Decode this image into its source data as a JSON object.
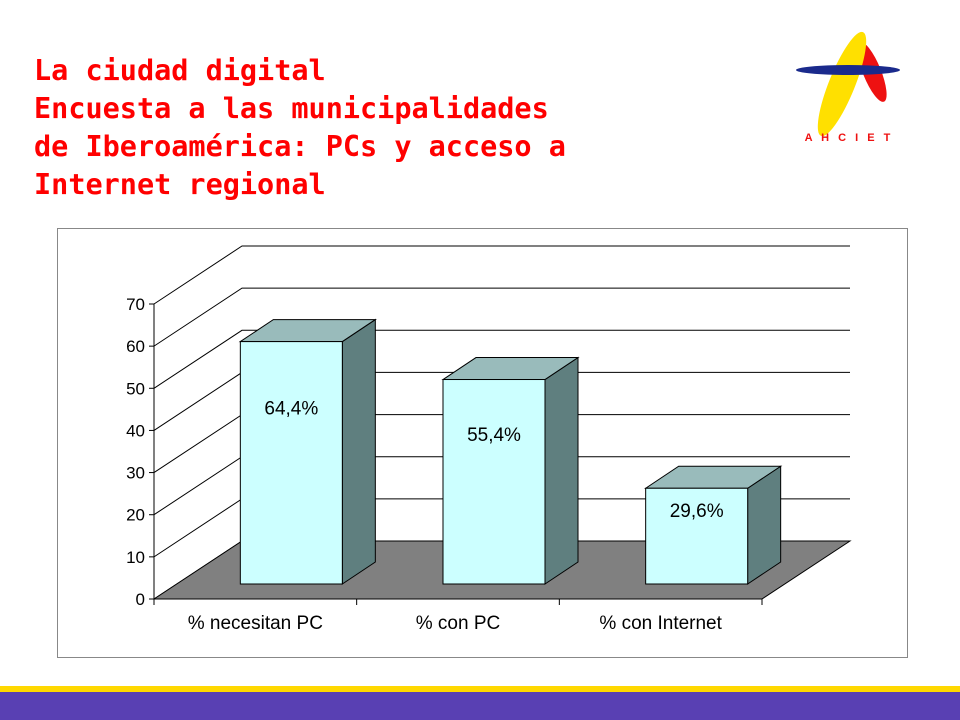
{
  "header": {
    "title_lines": [
      "La ciudad digital",
      "Encuesta a las municipalidades",
      "de Iberoamérica: PCs y acceso a",
      "Internet regional"
    ],
    "title_color": "#ff0000"
  },
  "logo": {
    "text": "A H C I E T",
    "icon": "ahciet-logo",
    "colors": {
      "yellow": "#ffe000",
      "red": "#ee1111",
      "blue": "#1a2a8c"
    }
  },
  "chart_data": {
    "type": "bar",
    "style": "3d-column",
    "categories": [
      "% necesitan PC",
      "% con PC",
      "% con Internet"
    ],
    "values": [
      64.4,
      55.4,
      29.6
    ],
    "data_labels": [
      "64,4%",
      "55,4%",
      "29,6%"
    ],
    "y_ticks": [
      "0",
      "10",
      "20",
      "30",
      "40",
      "50",
      "60",
      "70"
    ],
    "ylim": [
      0,
      70
    ],
    "grid": true,
    "legend": "none",
    "colors": {
      "bar_front": "#ccffff",
      "bar_top": "#99bbbb",
      "bar_side": "#5f7f7f",
      "floor": "#808080"
    }
  },
  "footer": {
    "bar_color": "#5940b3",
    "stripe_color": "#ffd800"
  }
}
